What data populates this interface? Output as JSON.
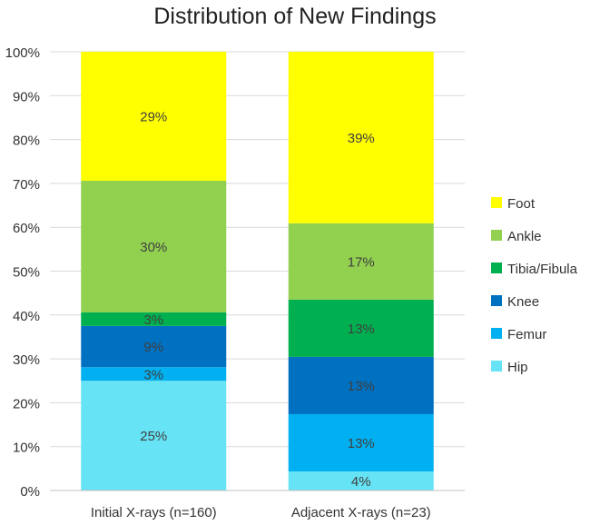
{
  "chart_data": {
    "type": "bar",
    "stacked": true,
    "percent": true,
    "title": "Distribution of New Findings",
    "xlabel": "",
    "ylabel": "",
    "ylim": [
      0,
      100
    ],
    "yticks": [
      "0%",
      "10%",
      "20%",
      "30%",
      "40%",
      "50%",
      "60%",
      "70%",
      "80%",
      "90%",
      "100%"
    ],
    "grid": true,
    "legend_position": "right",
    "categories": [
      "Initial X-rays (n=160)",
      "Adjacent X-rays (n=23)"
    ],
    "series": [
      {
        "name": "Hip",
        "color": "#66E3F5",
        "values": [
          25,
          4.35
        ],
        "labels": [
          "25%",
          "4%"
        ]
      },
      {
        "name": "Femur",
        "color": "#00B0F0",
        "values": [
          3.1,
          13.05
        ],
        "labels": [
          "3%",
          "13%"
        ]
      },
      {
        "name": "Knee",
        "color": "#0070C0",
        "values": [
          9.4,
          13.05
        ],
        "labels": [
          "9%",
          "13%"
        ]
      },
      {
        "name": "Tibia/Fibula",
        "color": "#00B050",
        "values": [
          3.1,
          13.05
        ],
        "labels": [
          "3%",
          "13%"
        ]
      },
      {
        "name": "Ankle",
        "color": "#92D050",
        "values": [
          30,
          17.4
        ],
        "labels": [
          "30%",
          "17%"
        ]
      },
      {
        "name": "Foot",
        "color": "#FFFF00",
        "values": [
          29.4,
          39.1
        ],
        "labels": [
          "29%",
          "39%"
        ]
      }
    ]
  }
}
